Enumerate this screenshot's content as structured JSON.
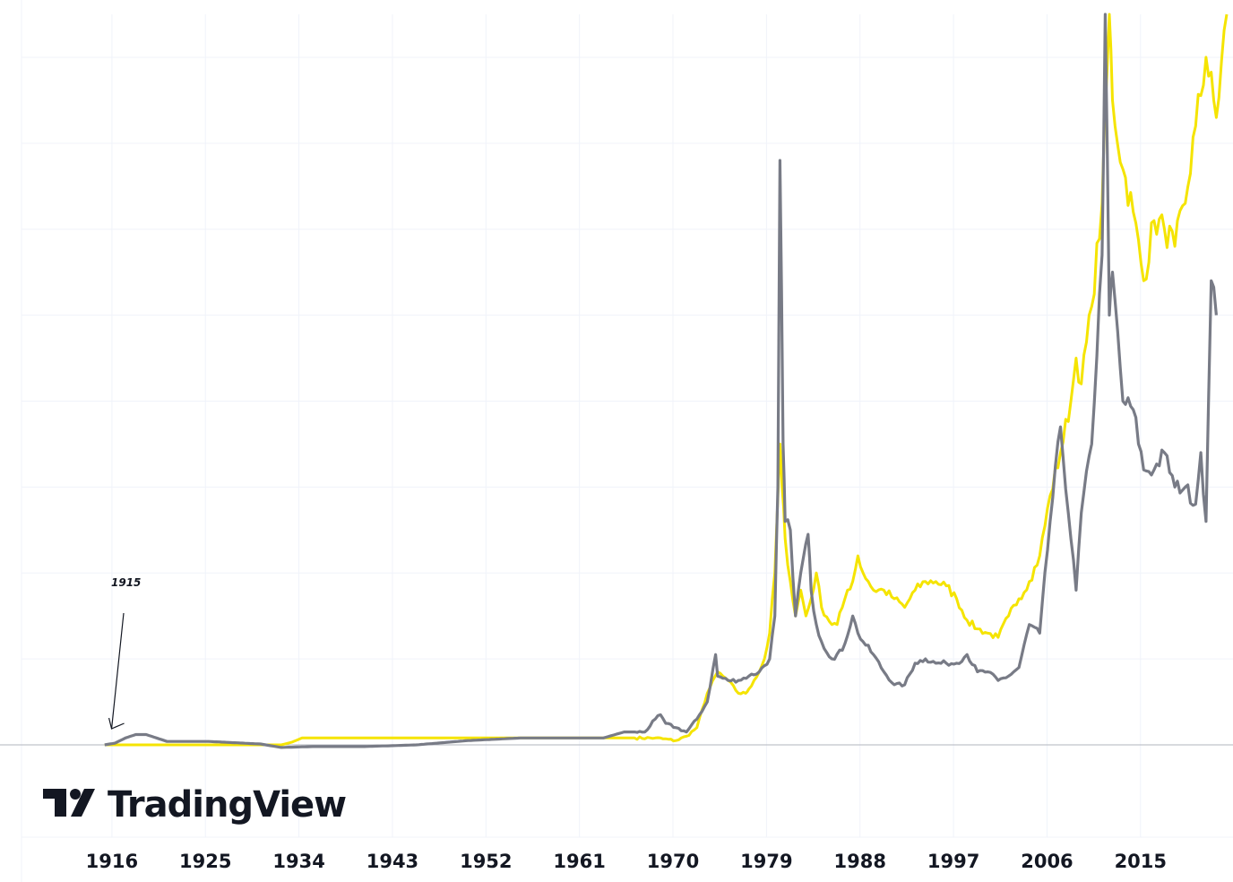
{
  "brand": {
    "logo_text": "TradingView"
  },
  "colors": {
    "series_gold": "#f5e400",
    "series_silver": "#787b86",
    "grid": "#f0f3fa",
    "baseline": "#b2b5be",
    "text": "#131722"
  },
  "chart_data": {
    "type": "line",
    "title": "",
    "xlabel": "",
    "ylabel": "",
    "x_ticks": [
      "1916",
      "1925",
      "1934",
      "1943",
      "1952",
      "1961",
      "1970",
      "1979",
      "1988",
      "1997",
      "2006",
      "2015"
    ],
    "xlim": [
      1907,
      2023.6
    ],
    "ylim": [
      -0.03,
      8.5
    ],
    "grid": true,
    "legend": "none",
    "annotations": [
      {
        "text": "1915",
        "x": 1915.5,
        "y": 0.0
      }
    ],
    "series": [
      {
        "color": "#f5e400",
        "x": [
          1915.0,
          1916.0,
          1920.0,
          1925.0,
          1930.0,
          1932.0,
          1933.0,
          1934.0,
          1935.0,
          1945.0,
          1955.0,
          1965.0,
          1968.0,
          1970.0,
          1971.0,
          1972.0,
          1973.0,
          1974.0,
          1974.5,
          1975.0,
          1976.0,
          1976.7,
          1977.0,
          1977.5,
          1978.0,
          1978.5,
          1979.0,
          1979.5,
          1980.0,
          1980.2,
          1980.5,
          1981.0,
          1981.5,
          1982.0,
          1982.5,
          1983.0,
          1983.5,
          1984.0,
          1985.0,
          1985.5,
          1986.0,
          1986.5,
          1987.0,
          1987.5,
          1988.0,
          1988.5,
          1989.0,
          1990.0,
          1991.0,
          1992.0,
          1993.0,
          1994.0,
          1995.0,
          1996.0,
          1997.0,
          1998.0,
          1999.0,
          2000.0,
          2001.0,
          2002.0,
          2003.0,
          2004.0,
          2005.0,
          2006.0,
          2007.0,
          2008.0,
          2008.5,
          2009.0,
          2010.0,
          2011.0,
          2011.7,
          2012.0,
          2013.0,
          2014.0,
          2015.0,
          2016.0,
          2017.0,
          2018.0,
          2019.0,
          2020.0,
          2021.0,
          2022.0,
          2023.0
        ],
        "y": [
          0.0,
          0.0,
          0.0,
          0.0,
          0.0,
          0.0,
          0.03,
          0.08,
          0.08,
          0.08,
          0.08,
          0.08,
          0.08,
          0.05,
          0.1,
          0.2,
          0.6,
          0.85,
          0.8,
          0.75,
          0.6,
          0.6,
          0.65,
          0.75,
          0.85,
          1.0,
          1.3,
          2.0,
          3.5,
          3.0,
          2.4,
          1.9,
          1.5,
          1.8,
          1.5,
          1.7,
          2.0,
          1.6,
          1.4,
          1.4,
          1.6,
          1.8,
          1.9,
          2.2,
          2.0,
          1.9,
          1.8,
          1.8,
          1.7,
          1.6,
          1.8,
          1.9,
          1.9,
          1.85,
          1.7,
          1.45,
          1.35,
          1.3,
          1.25,
          1.5,
          1.7,
          1.9,
          2.2,
          2.9,
          3.4,
          4.0,
          4.5,
          4.2,
          5.1,
          6.3,
          8.5,
          7.5,
          6.7,
          6.2,
          5.4,
          6.1,
          6.0,
          5.8,
          6.3,
          7.2,
          8.0,
          7.3,
          8.5
        ]
      },
      {
        "color": "#787b86",
        "x": [
          1915.0,
          1916.0,
          1917.0,
          1918.0,
          1919.0,
          1920.0,
          1921.0,
          1925.0,
          1930.0,
          1932.0,
          1935.0,
          1940.0,
          1945.0,
          1950.0,
          1955.0,
          1960.0,
          1963.0,
          1965.0,
          1967.0,
          1968.0,
          1968.5,
          1969.0,
          1970.0,
          1971.0,
          1972.0,
          1973.0,
          1973.8,
          1974.0,
          1975.0,
          1976.0,
          1977.0,
          1978.0,
          1979.0,
          1979.5,
          1979.8,
          1980.0,
          1980.3,
          1980.5,
          1981.0,
          1981.5,
          1982.0,
          1982.7,
          1983.0,
          1983.5,
          1984.0,
          1985.0,
          1986.0,
          1987.0,
          1987.5,
          1988.0,
          1989.0,
          1990.0,
          1991.0,
          1992.0,
          1993.0,
          1994.0,
          1995.0,
          1996.0,
          1997.0,
          1998.0,
          1999.0,
          2000.0,
          2001.0,
          2002.0,
          2003.0,
          2004.0,
          2005.0,
          2006.0,
          2007.0,
          2008.0,
          2008.5,
          2009.0,
          2010.0,
          2011.0,
          2011.3,
          2011.7,
          2012.0,
          2013.0,
          2014.0,
          2015.0,
          2016.0,
          2017.0,
          2018.0,
          2019.0,
          2020.0,
          2020.5,
          2021.0,
          2021.5,
          2022.0
        ],
        "y": [
          0.0,
          0.02,
          0.08,
          0.12,
          0.12,
          0.08,
          0.04,
          0.04,
          0.01,
          -0.03,
          -0.02,
          -0.02,
          0.0,
          0.05,
          0.08,
          0.08,
          0.08,
          0.15,
          0.15,
          0.3,
          0.35,
          0.25,
          0.2,
          0.15,
          0.3,
          0.5,
          1.05,
          0.8,
          0.75,
          0.75,
          0.8,
          0.85,
          1.0,
          1.5,
          3.0,
          6.8,
          3.5,
          2.6,
          2.5,
          1.5,
          2.0,
          2.45,
          1.8,
          1.4,
          1.2,
          1.0,
          1.1,
          1.5,
          1.3,
          1.2,
          1.05,
          0.85,
          0.7,
          0.7,
          0.95,
          1.0,
          0.95,
          0.95,
          0.95,
          1.05,
          0.85,
          0.85,
          0.75,
          0.8,
          0.9,
          1.4,
          1.3,
          2.6,
          3.7,
          2.4,
          1.8,
          2.7,
          3.5,
          5.7,
          8.5,
          5.0,
          5.5,
          4.0,
          3.9,
          3.2,
          3.2,
          3.4,
          3.0,
          3.0,
          2.8,
          3.4,
          2.6,
          5.4,
          5.0
        ]
      }
    ]
  }
}
